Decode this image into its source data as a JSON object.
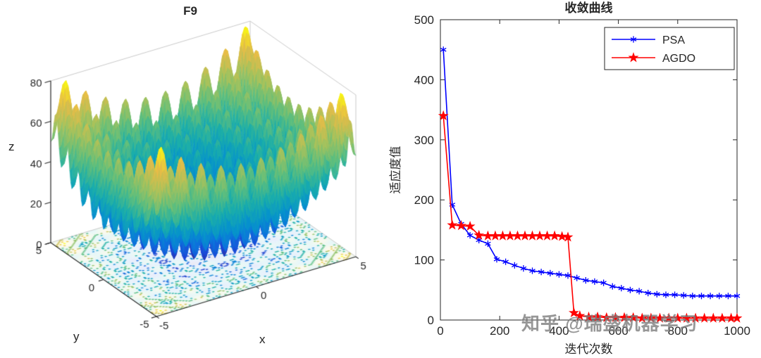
{
  "figure": {
    "background": "#ffffff"
  },
  "watermark": {
    "text": "知乎 @瑞盛机器学习",
    "color": "#7d7d7d"
  },
  "chart_data": [
    {
      "type": "surface",
      "title": "F9",
      "xlabel": "x",
      "ylabel": "y",
      "zlabel": "z",
      "x_range": [
        -5,
        5
      ],
      "y_range": [
        -5,
        5
      ],
      "z_range": [
        0,
        80
      ],
      "x_ticks": [
        -5,
        0,
        5
      ],
      "y_ticks": [
        -5,
        0,
        5
      ],
      "z_ticks": [
        0,
        20,
        40,
        60,
        80
      ],
      "function": "rastrigin: z = 20 + x^2 + y^2 - 10*(cos(2*pi*x)+cos(2*pi*y))",
      "colormap": "parula",
      "contour_projection": true,
      "view": {
        "azimuth": -37.5,
        "elevation": 30
      }
    },
    {
      "type": "line",
      "title": "收敛曲线",
      "xlabel": "迭代次数",
      "ylabel": "适应度值",
      "xlim": [
        0,
        1000
      ],
      "ylim": [
        0,
        500
      ],
      "x_ticks": [
        0,
        200,
        400,
        600,
        800,
        1000
      ],
      "y_ticks": [
        0,
        100,
        200,
        300,
        400,
        500
      ],
      "grid": false,
      "legend": {
        "position": "top-right",
        "entries": [
          "PSA",
          "AGDO"
        ]
      },
      "series": [
        {
          "name": "PSA",
          "color": "#0000ff",
          "marker": "asterisk",
          "x": [
            10,
            40,
            70,
            100,
            130,
            160,
            190,
            220,
            250,
            280,
            310,
            340,
            370,
            400,
            430,
            460,
            490,
            520,
            550,
            580,
            610,
            640,
            670,
            700,
            730,
            760,
            790,
            820,
            850,
            880,
            910,
            940,
            970,
            1000
          ],
          "y": [
            450,
            192,
            160,
            141,
            133,
            127,
            101,
            97,
            91,
            86,
            82,
            80,
            78,
            76,
            74,
            70,
            66,
            64,
            62,
            56,
            53,
            50,
            48,
            45,
            43,
            42,
            42,
            41,
            40,
            40,
            40,
            40,
            40,
            40
          ]
        },
        {
          "name": "AGDO",
          "color": "#ff0000",
          "marker": "pentagram",
          "x": [
            10,
            40,
            70,
            100,
            130,
            160,
            185,
            210,
            235,
            260,
            285,
            310,
            335,
            360,
            385,
            410,
            430,
            450,
            470,
            500,
            530,
            560,
            590,
            620,
            650,
            680,
            710,
            740,
            770,
            800,
            830,
            860,
            890,
            920,
            950,
            980,
            1000
          ],
          "y": [
            340,
            158,
            157,
            156,
            141,
            140,
            140,
            140,
            140,
            140,
            140,
            140,
            140,
            140,
            140,
            139,
            138,
            12,
            7,
            5,
            5,
            4,
            4,
            4,
            4,
            3,
            3,
            3,
            3,
            3,
            3,
            3,
            3,
            3,
            3,
            3,
            3
          ]
        }
      ]
    }
  ]
}
